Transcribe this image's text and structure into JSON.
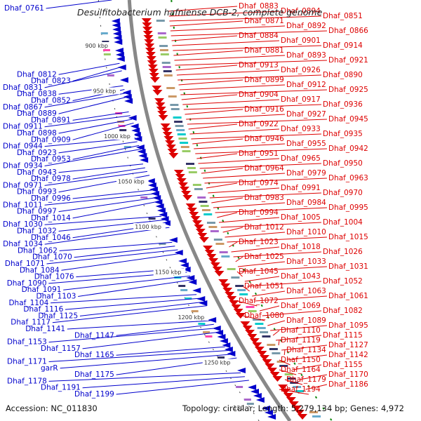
{
  "title": "Desulfitobacterium hafniense DCB-2, complete genome",
  "accession": "Accession: NC_011830",
  "topology": "Topology: circular; Length: 5,279,134 bp; Genes: 4,972",
  "colors": {
    "forward": "#dd0000",
    "reverse": "#0000cc",
    "backbone": "#888888",
    "tick": "#118811"
  },
  "scale_labels": [
    "900 kbp",
    "950 kbp",
    "1000 kbp",
    "1050 kbp",
    "1100 kbp",
    "1150 kbp",
    "1200 kbp",
    "1250 kbp",
    "130"
  ],
  "forward_genes": [
    "Dhaf_0883",
    "Dhaf_0894",
    "Dhaf_0851",
    "Dhaf_0871",
    "Dhaf_0892",
    "Dhaf_0866",
    "Dhaf_0884",
    "Dhaf_0901",
    "Dhaf_0914",
    "Dhaf_0881",
    "Dhaf_0893",
    "Dhaf_0921",
    "Dhaf_0913",
    "Dhaf_0926",
    "Dhaf_0890",
    "Dhaf_0899",
    "Dhaf_0912",
    "Dhaf_0925",
    "Dhaf_0904",
    "Dhaf_0917",
    "Dhaf_0936",
    "Dhaf_0916",
    "Dhaf_0927",
    "Dhaf_0945",
    "Dhaf_0922",
    "Dhaf_0933",
    "Dhaf_0935",
    "Dhaf_0946",
    "Dhaf_0955",
    "Dhaf_0942",
    "Dhaf_0951",
    "Dhaf_0965",
    "Dhaf_0950",
    "Dhaf_0964",
    "Dhaf_0979",
    "Dhaf_0963",
    "Dhaf_0974",
    "Dhaf_0991",
    "Dhaf_0970",
    "Dhaf_0983",
    "Dhaf_0984",
    "Dhaf_0995",
    "Dhaf_0994",
    "Dhaf_1005",
    "Dhaf_1004",
    "Dhaf_1012",
    "Dhaf_1010",
    "Dhaf_1015",
    "Dhaf_1023",
    "Dhaf_1018",
    "Dhaf_1026",
    "Dhaf_1025",
    "Dhaf_1033",
    "Dhaf_1031",
    "Dhaf_1045",
    "Dhaf_1043",
    "Dhaf_1052",
    "Dhaf_1051",
    "Dhaf_1063",
    "Dhaf_1061",
    "Dhaf_1072",
    "Dhaf_1069",
    "Dhaf_1082",
    "Dhaf_1080",
    "Dhaf_1089",
    "Dhaf_1095",
    "Dhaf_1110",
    "Dhaf_1115",
    "Dhaf_1119",
    "Dhaf_1127",
    "Dhaf_1134",
    "Dhaf_1142",
    "Dhaf_1150",
    "Dhaf_1155",
    "Dhaf_1164",
    "Dhaf_1170",
    "Dhaf_1179",
    "Dhaf_1186",
    "Dhaf_1194"
  ],
  "reverse_genes": [
    "Dhaf_0761",
    "Dhaf_0812",
    "Dhaf_0823",
    "Dhaf_0831",
    "Dhaf_0838",
    "Dhaf_0852",
    "Dhaf_0867",
    "Dhaf_0889",
    "Dhaf_0891",
    "Dhaf_0911",
    "Dhaf_0898",
    "Dhaf_0909",
    "Dhaf_0944",
    "Dhaf_0923",
    "Dhaf_0953",
    "Dhaf_0934",
    "Dhaf_0943",
    "Dhaf_0978",
    "Dhaf_0971",
    "Dhaf_0993",
    "Dhaf_0996",
    "Dhaf_1011",
    "Dhaf_0997",
    "Dhaf_1014",
    "Dhaf_1030",
    "Dhaf_1032",
    "Dhaf_1046",
    "Dhaf_1034",
    "Dhaf_1062",
    "Dhaf_1070",
    "Dhaf_1071",
    "Dhaf_1084",
    "Dhaf_1076",
    "Dhaf_1090",
    "Dhaf_1091",
    "Dhaf_1103",
    "Dhaf_1104",
    "Dhaf_1116",
    "Dhaf_1125",
    "Dhaf_1117",
    "Dhaf_1141",
    "Dhaf_1147",
    "Dhaf_1153",
    "Dhaf_1157",
    "Dhaf_1165",
    "Dhaf_1171",
    "garR",
    "Dhaf_1175",
    "Dhaf_1178",
    "Dhaf_1191",
    "Dhaf_1199"
  ]
}
